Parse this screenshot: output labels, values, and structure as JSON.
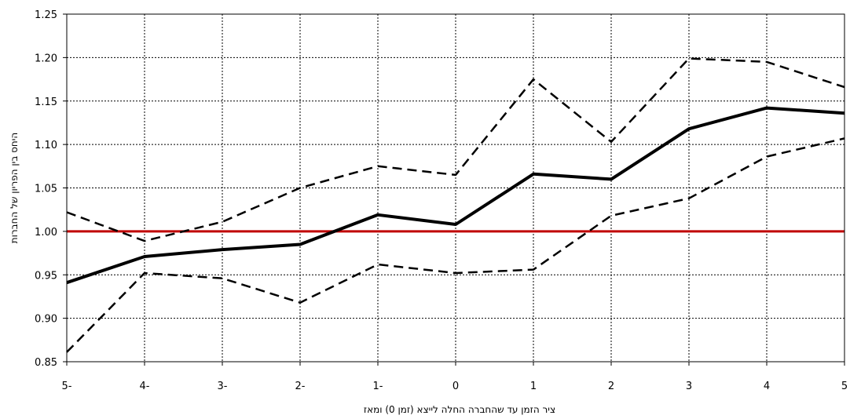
{
  "chart_data": {
    "type": "line",
    "xlabel": "ציר הזמן עד שהחברה החלה לייצא (זמן 0) ומאז",
    "ylabel": "היחס בין הפריון של החברות",
    "x_tick_labels": [
      "5-",
      "4-",
      "3-",
      "2-",
      "1-",
      "0",
      "1",
      "2",
      "3",
      "4",
      "5"
    ],
    "x": [
      -5,
      -4,
      -3,
      -2,
      -1,
      0,
      1,
      2,
      3,
      4,
      5
    ],
    "xlim": [
      -5,
      5
    ],
    "y_tick_labels": [
      "0.85",
      "0.90",
      "0.95",
      "1.00",
      "1.05",
      "1.10",
      "1.15",
      "1.20",
      "1.25"
    ],
    "y_ticks": [
      0.85,
      0.9,
      0.95,
      1.0,
      1.05,
      1.1,
      1.15,
      1.2,
      1.25
    ],
    "ylim": [
      0.85,
      1.25
    ],
    "grid": true,
    "reference_line": {
      "y": 1.0,
      "color": "#c00000"
    },
    "series": [
      {
        "style": "solid",
        "color": "#000000",
        "values": [
          0.941,
          0.971,
          0.979,
          0.985,
          1.019,
          1.008,
          1.066,
          1.06,
          1.118,
          1.142,
          1.136
        ]
      },
      {
        "style": "dashed",
        "color": "#000000",
        "values": [
          1.022,
          0.989,
          1.011,
          1.05,
          1.075,
          1.065,
          1.175,
          1.103,
          1.199,
          1.195,
          1.166
        ]
      },
      {
        "style": "dashed",
        "color": "#000000",
        "values": [
          0.861,
          0.952,
          0.946,
          0.918,
          0.962,
          0.952,
          0.956,
          1.018,
          1.038,
          1.086,
          1.107
        ]
      }
    ]
  }
}
